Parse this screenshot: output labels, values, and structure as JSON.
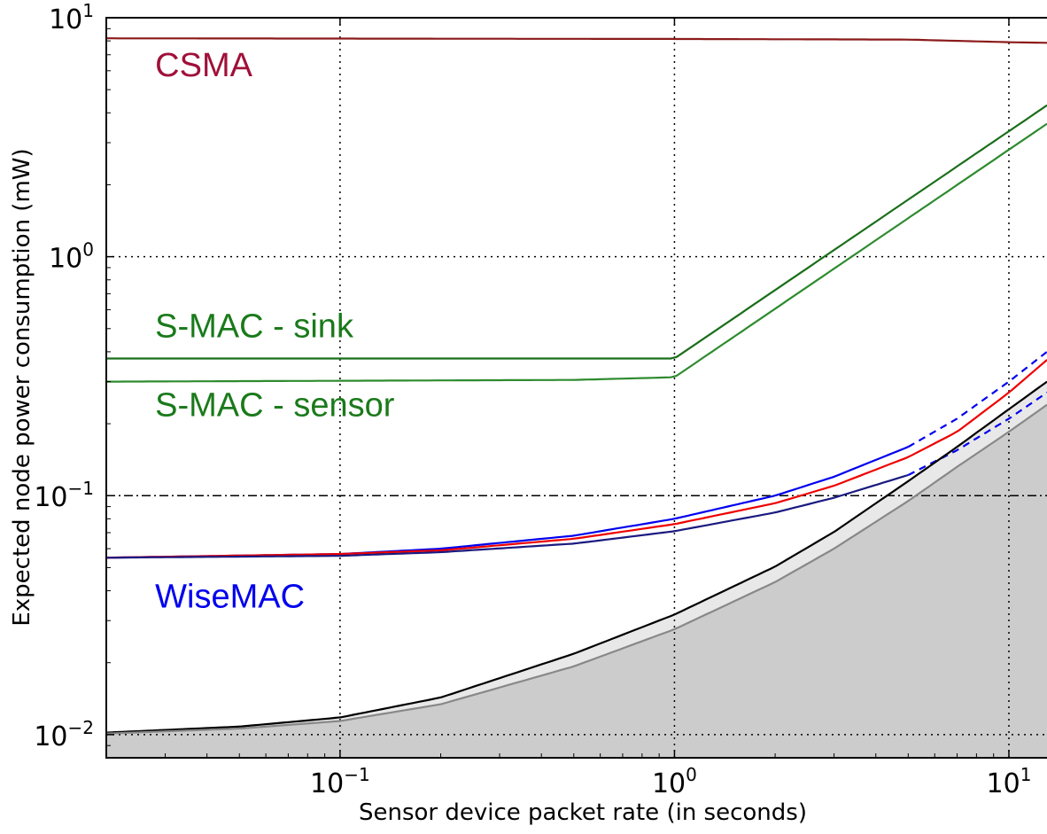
{
  "chart_data": {
    "type": "line",
    "title": "",
    "xlabel": "Sensor device packet rate (in seconds)",
    "ylabel": "Expected node power consumption (mW)",
    "xscale": "log",
    "yscale": "log",
    "xlim": [
      0.02,
      13
    ],
    "ylim": [
      0.008,
      10
    ],
    "grid": true,
    "x_ticks": [
      {
        "value": 0.1,
        "base": "10",
        "exp": "-1"
      },
      {
        "value": 1,
        "base": "10",
        "exp": "0"
      },
      {
        "value": 10,
        "base": "10",
        "exp": "1"
      }
    ],
    "y_ticks": [
      {
        "value": 0.01,
        "base": "10",
        "exp": "-2"
      },
      {
        "value": 0.1,
        "base": "10",
        "exp": "-1"
      },
      {
        "value": 1,
        "base": "10",
        "exp": "0"
      },
      {
        "value": 10,
        "base": "10",
        "exp": "1"
      }
    ],
    "reference_line": {
      "y": 0.1,
      "style": "dash-dot",
      "color": "#000000"
    },
    "areas": [
      {
        "color": "#e8e8e8",
        "x": [
          0.02,
          0.05,
          0.1,
          0.2,
          0.5,
          1,
          2,
          3,
          5,
          7,
          10,
          13
        ],
        "y": [
          0.0102,
          0.0108,
          0.0118,
          0.0143,
          0.0218,
          0.0318,
          0.0505,
          0.0705,
          0.115,
          0.16,
          0.23,
          0.3
        ]
      },
      {
        "color": "#cccccc",
        "x": [
          0.02,
          0.05,
          0.1,
          0.2,
          0.5,
          1,
          2,
          3,
          5,
          7,
          10,
          13
        ],
        "y": [
          0.0101,
          0.0106,
          0.0114,
          0.0134,
          0.0193,
          0.0276,
          0.0435,
          0.06,
          0.095,
          0.132,
          0.185,
          0.24
        ]
      }
    ],
    "series": [
      {
        "color": "#8b1a1a",
        "dash": "none",
        "x": [
          0.02,
          1,
          5,
          10,
          13
        ],
        "y": [
          8.2,
          8.15,
          8.1,
          7.9,
          7.85
        ]
      },
      {
        "color": "#1a6e1a",
        "dash": "none",
        "x": [
          0.02,
          1,
          13
        ],
        "y": [
          0.375,
          0.375,
          4.3
        ]
      },
      {
        "color": "#2e8b2e",
        "dash": "none",
        "x": [
          0.02,
          0.5,
          1,
          13
        ],
        "y": [
          0.3,
          0.305,
          0.313,
          3.6
        ]
      },
      {
        "color": "#0000ee",
        "dash": "none",
        "x": [
          0.02,
          0.1,
          0.2,
          0.5,
          1,
          2,
          3,
          5
        ],
        "y": [
          0.055,
          0.057,
          0.06,
          0.068,
          0.08,
          0.1,
          0.12,
          0.16
        ]
      },
      {
        "color": "#0000ee",
        "dash": "8,6",
        "x": [
          5,
          7,
          10,
          13
        ],
        "y": [
          0.16,
          0.21,
          0.3,
          0.4
        ]
      },
      {
        "color": "#ee0000",
        "dash": "none",
        "x": [
          0.02,
          0.1,
          0.2,
          0.5,
          1,
          2,
          3,
          5,
          7,
          10,
          13
        ],
        "y": [
          0.055,
          0.057,
          0.059,
          0.066,
          0.076,
          0.093,
          0.11,
          0.145,
          0.185,
          0.27,
          0.37
        ]
      },
      {
        "color": "#1a1a80",
        "dash": "none",
        "x": [
          0.02,
          0.1,
          0.2,
          0.5,
          1,
          2,
          3,
          5
        ],
        "y": [
          0.055,
          0.056,
          0.058,
          0.063,
          0.071,
          0.085,
          0.098,
          0.122
        ]
      },
      {
        "color": "#0000ee",
        "dash": "8,6",
        "x": [
          5,
          7,
          10,
          13
        ],
        "y": [
          0.122,
          0.155,
          0.21,
          0.27
        ]
      },
      {
        "color": "#000000",
        "dash": "none",
        "x": [
          0.02,
          0.05,
          0.1,
          0.2,
          0.5,
          1,
          2,
          3,
          5,
          7,
          10,
          13
        ],
        "y": [
          0.0102,
          0.0108,
          0.0118,
          0.0143,
          0.0218,
          0.0318,
          0.0505,
          0.0705,
          0.115,
          0.16,
          0.23,
          0.3
        ]
      },
      {
        "color": "#888888",
        "dash": "none",
        "x": [
          0.02,
          0.05,
          0.1,
          0.2,
          0.5,
          1,
          2,
          3,
          5,
          7,
          10,
          13
        ],
        "y": [
          0.0101,
          0.0106,
          0.0114,
          0.0134,
          0.0193,
          0.0276,
          0.0435,
          0.06,
          0.095,
          0.132,
          0.185,
          0.24
        ]
      }
    ],
    "annotations": [
      {
        "text": "CSMA",
        "x": 0.028,
        "y": 5.7,
        "color": "#a0103a"
      },
      {
        "text": "S-MAC - sink",
        "x": 0.028,
        "y": 0.46,
        "color": "#1a7a1a"
      },
      {
        "text": "S-MAC - sensor",
        "x": 0.028,
        "y": 0.215,
        "color": "#1a7a1a"
      },
      {
        "text": "WiseMAC",
        "x": 0.028,
        "y": 0.034,
        "color": "#0000ee"
      }
    ]
  }
}
